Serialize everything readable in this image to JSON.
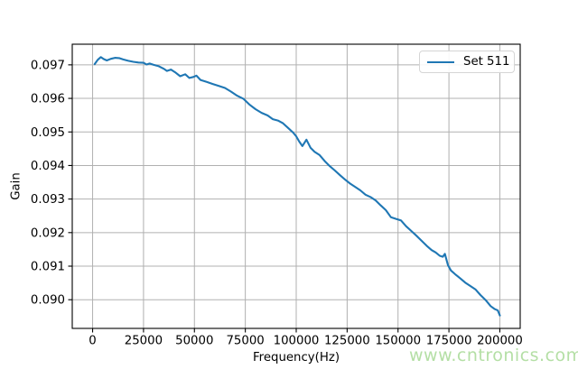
{
  "figure": {
    "background": "#ffffff",
    "watermark": {
      "text": "www.cntronics.com",
      "color": "#b4dfa5"
    }
  },
  "colors": {
    "line": "#1f77b4",
    "grid": "#b0b0b0",
    "axis": "#000000",
    "tick_text": "#000000",
    "legend_border": "#d5d5d5"
  },
  "chart_data": {
    "type": "line",
    "title": "",
    "xlabel": "Frequency(Hz)",
    "ylabel": "Gain",
    "grid": true,
    "legend_position": "upper right",
    "xlim": [
      -10000,
      210000
    ],
    "ylim": [
      0.089145,
      0.097615
    ],
    "x_ticks": [
      0,
      25000,
      50000,
      75000,
      100000,
      125000,
      150000,
      175000,
      200000
    ],
    "y_ticks": [
      0.09,
      0.091,
      0.092,
      0.093,
      0.094,
      0.095,
      0.096,
      0.097
    ],
    "legend": {
      "entries": [
        {
          "label": "Set 511",
          "color": "#1f77b4"
        }
      ]
    },
    "series": [
      {
        "name": "Set 511",
        "color": "#1f77b4",
        "points": [
          [
            1000,
            0.09702
          ],
          [
            2500,
            0.09715
          ],
          [
            4000,
            0.09723
          ],
          [
            5500,
            0.09717
          ],
          [
            7000,
            0.09713
          ],
          [
            9000,
            0.09718
          ],
          [
            11000,
            0.09721
          ],
          [
            13000,
            0.0972
          ],
          [
            15000,
            0.09716
          ],
          [
            17500,
            0.09712
          ],
          [
            20000,
            0.09709
          ],
          [
            22500,
            0.09707
          ],
          [
            25000,
            0.09706
          ],
          [
            26500,
            0.09701
          ],
          [
            28000,
            0.09704
          ],
          [
            30000,
            0.097
          ],
          [
            32500,
            0.09696
          ],
          [
            35000,
            0.09688
          ],
          [
            36500,
            0.09682
          ],
          [
            38500,
            0.09686
          ],
          [
            40500,
            0.09678
          ],
          [
            43000,
            0.09666
          ],
          [
            45500,
            0.09672
          ],
          [
            47500,
            0.09661
          ],
          [
            49500,
            0.09664
          ],
          [
            51000,
            0.09668
          ],
          [
            53000,
            0.09655
          ],
          [
            56000,
            0.09649
          ],
          [
            59000,
            0.09643
          ],
          [
            62000,
            0.09637
          ],
          [
            65000,
            0.09631
          ],
          [
            68000,
            0.0962
          ],
          [
            71000,
            0.09608
          ],
          [
            74000,
            0.09599
          ],
          [
            77000,
            0.09582
          ],
          [
            80000,
            0.09568
          ],
          [
            83000,
            0.09557
          ],
          [
            86000,
            0.09549
          ],
          [
            88500,
            0.09538
          ],
          [
            91000,
            0.09534
          ],
          [
            93500,
            0.09526
          ],
          [
            96000,
            0.09512
          ],
          [
            98500,
            0.09498
          ],
          [
            100000,
            0.09487
          ],
          [
            101500,
            0.09471
          ],
          [
            103000,
            0.09458
          ],
          [
            105000,
            0.09477
          ],
          [
            107000,
            0.09453
          ],
          [
            109000,
            0.09441
          ],
          [
            111500,
            0.09431
          ],
          [
            114000,
            0.09413
          ],
          [
            116500,
            0.09398
          ],
          [
            119000,
            0.09385
          ],
          [
            121500,
            0.09371
          ],
          [
            124000,
            0.09358
          ],
          [
            126500,
            0.09346
          ],
          [
            129000,
            0.09336
          ],
          [
            131500,
            0.09326
          ],
          [
            134000,
            0.09313
          ],
          [
            136500,
            0.09306
          ],
          [
            139000,
            0.09296
          ],
          [
            141500,
            0.09281
          ],
          [
            144000,
            0.09267
          ],
          [
            146500,
            0.09246
          ],
          [
            149000,
            0.09241
          ],
          [
            151500,
            0.09236
          ],
          [
            154000,
            0.09219
          ],
          [
            156500,
            0.09205
          ],
          [
            159000,
            0.09191
          ],
          [
            161500,
            0.09176
          ],
          [
            164000,
            0.09161
          ],
          [
            166500,
            0.09148
          ],
          [
            168500,
            0.09141
          ],
          [
            170500,
            0.09131
          ],
          [
            172000,
            0.09128
          ],
          [
            173000,
            0.09137
          ],
          [
            174500,
            0.09103
          ],
          [
            176000,
            0.09087
          ],
          [
            178000,
            0.09076
          ],
          [
            180500,
            0.09064
          ],
          [
            183000,
            0.09051
          ],
          [
            185500,
            0.09041
          ],
          [
            188000,
            0.09031
          ],
          [
            190500,
            0.09014
          ],
          [
            193000,
            0.08999
          ],
          [
            195500,
            0.08981
          ],
          [
            197500,
            0.08972
          ],
          [
            199000,
            0.08968
          ],
          [
            200000,
            0.08953
          ]
        ]
      }
    ]
  }
}
